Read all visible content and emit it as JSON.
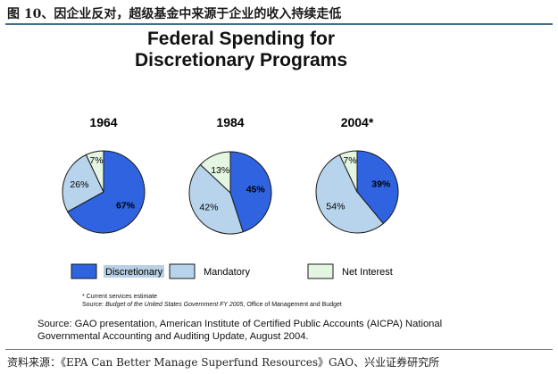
{
  "caption": "图 10、因企业反对，超级基金中来源于企业的收入持续走低",
  "chart_data": {
    "type": "pie",
    "title_line1": "Federal Spending for",
    "title_line2": "Discretionary Programs",
    "series_names": [
      "Discretionary",
      "Mandatory",
      "Net Interest"
    ],
    "colors": {
      "Discretionary": "#2f63e0",
      "Mandatory": "#b7d4ec",
      "Net Interest": "#e4f5e2"
    },
    "pies": [
      {
        "label": "1964",
        "values": [
          67,
          26,
          7
        ]
      },
      {
        "label": "1984",
        "values": [
          45,
          42,
          13
        ]
      },
      {
        "label": "2004*",
        "values": [
          39,
          54,
          7
        ]
      }
    ]
  },
  "notes": {
    "line1": "* Current services estimate",
    "line2_prefix": "Source: ",
    "line2_italic": "Budget of the United States Government FY 2005",
    "line2_suffix": ", Office of Management and Budget"
  },
  "source": "Source: GAO presentation, American Institute of Certified Public Accounts (AICPA) National Governmental Accounting and Auditing Update, August 2004.",
  "footer": "资料来源：《EPA Can Better Manage Superfund Resources》GAO、兴业证券研究所"
}
